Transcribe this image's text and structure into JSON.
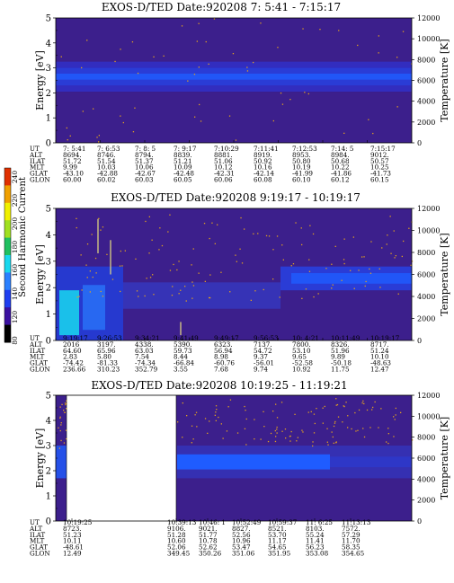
{
  "colors": {
    "background": "#ffffff",
    "plot_bg": "#3c1f8c",
    "band_dark": "#2a3cd6",
    "band_bright": "#1f5cff",
    "band_cyan": "#19d8ee",
    "speckle": "#e0a020",
    "blank": "#ffffff"
  },
  "colorbar": {
    "label": "Second Harmonic Current",
    "ticks": [
      "80",
      "120",
      "140",
      "160",
      "180",
      "200",
      "220",
      "240"
    ],
    "colors": [
      "#000000",
      "#3a10a0",
      "#1f3ef0",
      "#2a80ff",
      "#19d8ee",
      "#20c060",
      "#a0e020",
      "#f0f000",
      "#f0a000",
      "#e03000"
    ]
  },
  "chart_data": [
    {
      "type": "heatmap",
      "title": "EXOS-D/TED   Date:920208   7: 5:41 - 7:15:17",
      "ylabel": "Energy [eV]",
      "ylabel_right": "Temperature [K]",
      "ylim": [
        0,
        5
      ],
      "ylim_right": [
        0,
        12000
      ],
      "yticks": [
        "0",
        "1",
        "2",
        "3",
        "4",
        "5"
      ],
      "yticks_right": [
        "0",
        "2000",
        "4000",
        "6000",
        "8000",
        "10000",
        "12000"
      ],
      "xticks": [
        "7: 5:41",
        "7: 6:53",
        "7: 8: 5",
        "7: 9:17",
        "7:10:29",
        "7:11:41",
        "7:12:53",
        "7:14: 5",
        "7:15:17"
      ],
      "band": {
        "energy_center": 2.65,
        "energy_halfwidth": 0.35
      },
      "gaps": [],
      "table": {
        "row_labels": [
          "UT",
          "ALT",
          "ILAT",
          "MLT",
          "GLAT",
          "GLON"
        ],
        "rows": [
          [
            "7: 5:41",
            "7: 6:53",
            "7: 8: 5",
            "7: 9:17",
            "7:10:29",
            "7:11:41",
            "7:12:53",
            "7:14: 5",
            "7:15:17"
          ],
          [
            "8694.",
            "8746.",
            "8794.",
            "8839.",
            "8881.",
            "8919.",
            "8953.",
            "8984.",
            "9012."
          ],
          [
            "51.72",
            "51.54",
            "51.37",
            "51.21",
            "51.06",
            "50.92",
            "50.80",
            "50.68",
            "50.57"
          ],
          [
            "9.99",
            "10.03",
            "10.06",
            "10.09",
            "10.12",
            "10.16",
            "10.19",
            "10.22",
            "10.25"
          ],
          [
            "-43.10",
            "-42.88",
            "-42.67",
            "-42.48",
            "-42.31",
            "-42.14",
            "-41.99",
            "-41.86",
            "-41.73"
          ],
          [
            "60.00",
            "60.02",
            "60.03",
            "60.05",
            "60.06",
            "60.08",
            "60.10",
            "60.12",
            "60.15"
          ]
        ]
      }
    },
    {
      "type": "heatmap",
      "title": "EXOS-D/TED   Date:920208   9:19:17 - 10:19:17",
      "ylabel": "Energy [eV]",
      "ylabel_right": "Temperature [K]",
      "ylim": [
        0,
        5
      ],
      "ylim_right": [
        0,
        12000
      ],
      "yticks": [
        "0",
        "1",
        "2",
        "3",
        "4",
        "5"
      ],
      "yticks_right": [
        "0",
        "2000",
        "4000",
        "6000",
        "8000",
        "10000",
        "12000"
      ],
      "xticks": [
        "9:19:17",
        "9:26:53",
        "9:34:21",
        "9:41:49",
        "9:49:17",
        "9:56:53",
        "10: 4:21",
        "10:11:49",
        "10:19:17"
      ],
      "band": {
        "energy_center": 2.35,
        "energy_halfwidth": 0.45
      },
      "gaps": [],
      "table": {
        "row_labels": [
          "UT",
          "ALT",
          "ILAT",
          "MLT",
          "GLAT",
          "GLON"
        ],
        "rows": [
          [
            "9:19:17",
            "9:26:53",
            "9:34:21",
            "9:41:49",
            "9:49:17",
            "9:56:53",
            "10: 4:21",
            "10:11:49",
            "10:19:17"
          ],
          [
            "2016",
            "3197.",
            "4338.",
            "5390.",
            "6323.",
            "7137.",
            "7800.",
            "8326.",
            "8717."
          ],
          [
            "64.60",
            "65.96",
            "63.03",
            "59.73",
            "56.94",
            "54.72",
            "53.10",
            "51.96",
            "51.24"
          ],
          [
            "2.83",
            "5.80",
            "7.54",
            "8.44",
            "8.98",
            "9.37",
            "9.65",
            "9.89",
            "10.10"
          ],
          [
            "-74.42",
            "-81.33",
            "-74.34",
            "-66.84",
            "-60.76",
            "-56.01",
            "-52.58",
            "-50.18",
            "-48.63"
          ],
          [
            "236.66",
            "310.23",
            "352.79",
            "3.55",
            "7.68",
            "9.74",
            "10.92",
            "11.75",
            "12.47"
          ]
        ]
      }
    },
    {
      "type": "heatmap",
      "title": "EXOS-D/TED   Date:920208   10:19:25 - 11:19:21",
      "ylabel": "Energy [eV]",
      "ylabel_right": "Temperature [K]",
      "ylim": [
        0,
        5
      ],
      "ylim_right": [
        0,
        12000
      ],
      "yticks": [
        "0",
        "1",
        "2",
        "3",
        "4",
        "5"
      ],
      "yticks_right": [
        "0",
        "2000",
        "4000",
        "6000",
        "8000",
        "10000",
        "12000"
      ],
      "xticks": [
        "10:19:25",
        "10:39:13",
        "10:46: 1",
        "10:52:49",
        "10:59:37",
        "11: 6:25",
        "11:13:13"
      ],
      "band": {
        "energy_center": 2.35,
        "energy_halfwidth": 0.3
      },
      "gaps": [
        [
          "10:20:30",
          "10:39:13"
        ]
      ],
      "table": {
        "row_labels": [
          "UT",
          "ALT",
          "ILAT",
          "MLT",
          "GLAT",
          "GLON"
        ],
        "rows": [
          [
            "10:19:25",
            "10:39:13",
            "10:46: 1",
            "10:52:49",
            "10:59:37",
            "11: 6:25",
            "11:13:13"
          ],
          [
            "8723.",
            "9106.",
            "9021.",
            "8827.",
            "8521.",
            "8103.",
            "7572."
          ],
          [
            "51.23",
            "51.28",
            "51.77",
            "52.56",
            "53.70",
            "55.24",
            "57.29"
          ],
          [
            "10.11",
            "10.60",
            "10.78",
            "10.96",
            "11.17",
            "11.41",
            "11.70"
          ],
          [
            "-48.61",
            "52.06",
            "52.62",
            "53.47",
            "54.65",
            "56.23",
            "58.35"
          ],
          [
            "12.49",
            "349.45",
            "350.26",
            "351.06",
            "351.95",
            "353.08",
            "354.65"
          ]
        ]
      }
    }
  ]
}
